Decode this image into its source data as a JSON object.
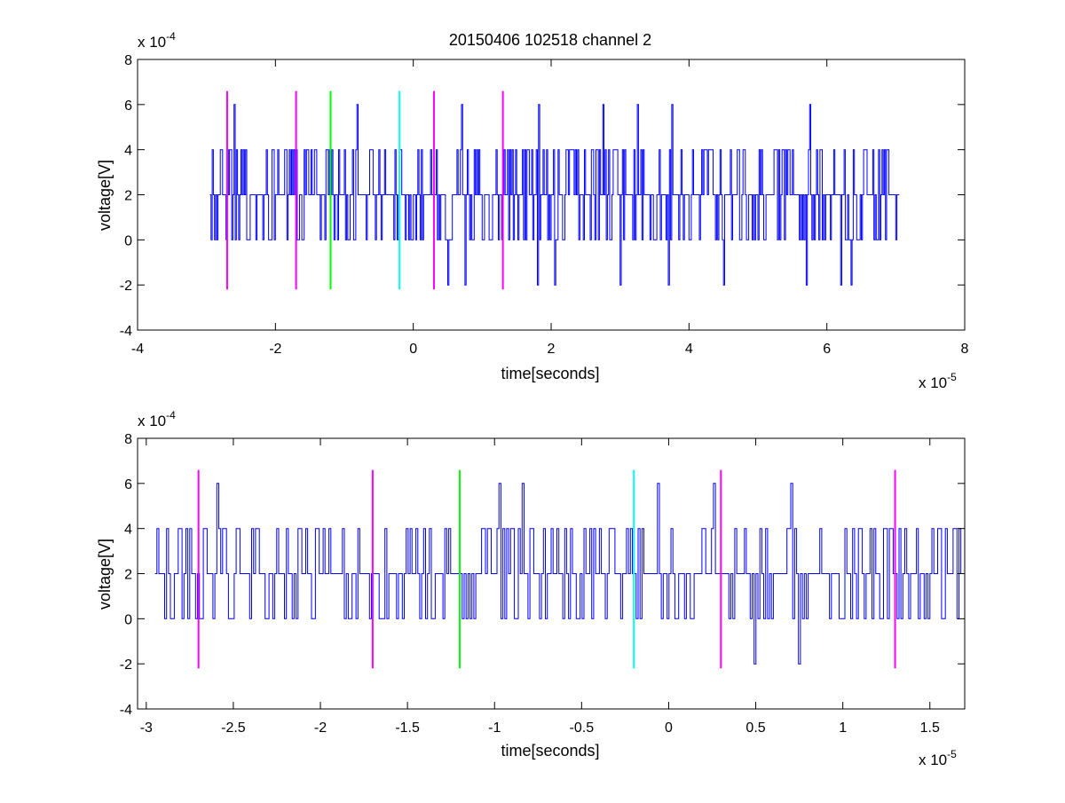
{
  "figure_title": "20150406 102518 channel 2",
  "colors": {
    "signal": "#0000ff",
    "magenta": "#ff00ff",
    "green": "#00ff00",
    "cyan": "#00ffff",
    "axes": "#000000",
    "background": "#ffffff"
  },
  "chart_data": [
    {
      "type": "line",
      "title": "20150406 102518 channel 2",
      "xlabel": "time[seconds]",
      "ylabel": "voltage[V]",
      "x_exponent_label": "x 10",
      "x_exponent": "-5",
      "y_exponent_label": "x 10",
      "y_exponent": "-4",
      "xlim": [
        -4,
        8
      ],
      "ylim": [
        -4,
        8
      ],
      "xticks": [
        -4,
        -2,
        0,
        2,
        4,
        6,
        8
      ],
      "xtick_labels": [
        "-4",
        "-2",
        "0",
        "2",
        "4",
        "6",
        "8"
      ],
      "yticks": [
        -4,
        -2,
        0,
        2,
        4,
        6,
        8
      ],
      "ytick_labels": [
        "-4",
        "-2",
        "0",
        "2",
        "4",
        "6",
        "8"
      ],
      "grid": false,
      "signal": {
        "x_start": -2.95,
        "x_end": 7.05,
        "levels": [
          -2,
          0,
          2,
          4,
          6
        ],
        "baseline": 2,
        "spikes_high": [
          {
            "x": -2.6,
            "y": 6
          },
          {
            "x": -0.82,
            "y": 6
          },
          {
            "x": 0.7,
            "y": 6
          },
          {
            "x": 1.82,
            "y": 6
          },
          {
            "x": 2.75,
            "y": 6
          },
          {
            "x": 3.25,
            "y": 6
          },
          {
            "x": 3.75,
            "y": 6
          },
          {
            "x": 5.75,
            "y": 6
          }
        ],
        "spikes_low": [
          {
            "x": 0.5,
            "y": -2
          },
          {
            "x": 0.75,
            "y": -2
          },
          {
            "x": 1.8,
            "y": -2
          },
          {
            "x": 2.05,
            "y": -2
          },
          {
            "x": 3.0,
            "y": -2
          },
          {
            "x": 3.7,
            "y": -2
          },
          {
            "x": 4.5,
            "y": -2
          },
          {
            "x": 5.7,
            "y": -2
          },
          {
            "x": 6.2,
            "y": -2
          },
          {
            "x": 6.35,
            "y": -2
          }
        ]
      },
      "markers": [
        {
          "x": -2.7,
          "y_from": -2.2,
          "y_to": 6.6,
          "color": "magenta"
        },
        {
          "x": -1.7,
          "y_from": -2.2,
          "y_to": 6.6,
          "color": "magenta"
        },
        {
          "x": -1.2,
          "y_from": -2.2,
          "y_to": 6.6,
          "color": "green"
        },
        {
          "x": -0.2,
          "y_from": -2.2,
          "y_to": 6.6,
          "color": "cyan"
        },
        {
          "x": 0.3,
          "y_from": -2.2,
          "y_to": 6.6,
          "color": "magenta"
        },
        {
          "x": 1.3,
          "y_from": -2.2,
          "y_to": 6.6,
          "color": "magenta"
        }
      ]
    },
    {
      "type": "line",
      "title": "",
      "xlabel": "time[seconds]",
      "ylabel": "voltage[V]",
      "x_exponent_label": "x 10",
      "x_exponent": "-5",
      "y_exponent_label": "x 10",
      "y_exponent": "-4",
      "xlim": [
        -3.05,
        1.7
      ],
      "ylim": [
        -4,
        8
      ],
      "xticks": [
        -3,
        -2.5,
        -2,
        -1.5,
        -1,
        -0.5,
        0,
        0.5,
        1,
        1.5
      ],
      "xtick_labels": [
        "-3",
        "-2.5",
        "-2",
        "-1.5",
        "-1",
        "-0.5",
        "0",
        "0.5",
        "1",
        "1.5"
      ],
      "yticks": [
        -4,
        -2,
        0,
        2,
        4,
        6,
        8
      ],
      "ytick_labels": [
        "-4",
        "-2",
        "0",
        "2",
        "4",
        "6",
        "8"
      ],
      "grid": false,
      "signal": {
        "x_start": -2.95,
        "x_end": 1.7,
        "levels": [
          -2,
          0,
          2,
          4,
          6
        ],
        "baseline": 2,
        "spikes_high": [
          {
            "x": -2.6,
            "y": 6
          },
          {
            "x": -0.98,
            "y": 6
          },
          {
            "x": -0.84,
            "y": 6
          },
          {
            "x": -0.07,
            "y": 6
          },
          {
            "x": 0.26,
            "y": 6
          },
          {
            "x": 0.7,
            "y": 6
          }
        ],
        "spikes_low": [
          {
            "x": 0.49,
            "y": -2
          },
          {
            "x": 0.75,
            "y": -2
          }
        ]
      },
      "markers": [
        {
          "x": -2.7,
          "y_from": -2.2,
          "y_to": 6.6,
          "color": "magenta"
        },
        {
          "x": -1.7,
          "y_from": -2.2,
          "y_to": 6.6,
          "color": "magenta"
        },
        {
          "x": -1.2,
          "y_from": -2.2,
          "y_to": 6.6,
          "color": "green"
        },
        {
          "x": -0.2,
          "y_from": -2.2,
          "y_to": 6.6,
          "color": "cyan"
        },
        {
          "x": 0.3,
          "y_from": -2.2,
          "y_to": 6.6,
          "color": "magenta"
        },
        {
          "x": 1.3,
          "y_from": -2.2,
          "y_to": 6.6,
          "color": "magenta"
        }
      ]
    }
  ]
}
